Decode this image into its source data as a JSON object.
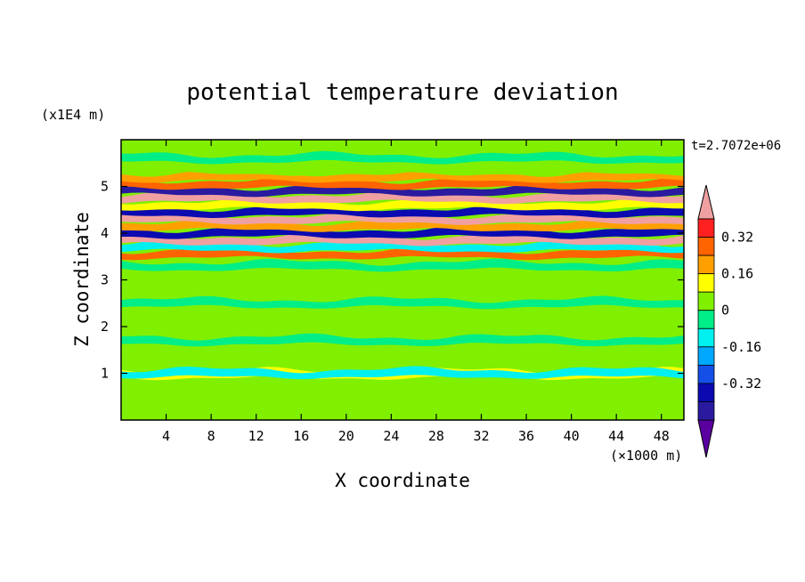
{
  "chart_data": {
    "type": "heatmap",
    "title": "potential temperature deviation",
    "xlabel": "X coordinate",
    "ylabel": "Z coordinate",
    "x_unit": "(×1000 m)",
    "y_unit": "(x1E4 m)",
    "time_label": "t=2.7072e+06",
    "xlim": [
      0,
      50
    ],
    "ylim": [
      0,
      6
    ],
    "x_ticks": [
      4,
      8,
      12,
      16,
      20,
      24,
      28,
      32,
      36,
      40,
      44,
      48
    ],
    "y_ticks": [
      1,
      2,
      3,
      4,
      5
    ],
    "colorbar": {
      "levels": [
        -0.48,
        -0.4,
        -0.32,
        -0.24,
        -0.16,
        -0.08,
        0,
        0.08,
        0.16,
        0.24,
        0.32,
        0.4
      ],
      "colors": [
        "#5a00a0",
        "#2a1aa0",
        "#0a0ab0",
        "#1450e8",
        "#00a8ff",
        "#00f0f0",
        "#00ee88",
        "#80f000",
        "#ffff00",
        "#ffa000",
        "#ff6400",
        "#ff2020",
        "#f0a0a0"
      ],
      "tick_labels": [
        "0.32",
        "0.16",
        "0",
        "-0.16",
        "-0.32"
      ],
      "tick_values": [
        0.32,
        0.16,
        0,
        -0.16,
        -0.32
      ],
      "extend": "both"
    },
    "bands": [
      {
        "z": 0.45,
        "value": 0.04
      },
      {
        "z": 0.75,
        "value": 0.02
      },
      {
        "z": 0.98,
        "value": 0.12
      },
      {
        "z": 1.0,
        "value": -0.12
      },
      {
        "z": 1.3,
        "value": 0.04
      },
      {
        "z": 1.7,
        "value": -0.02
      },
      {
        "z": 2.1,
        "value": 0.04
      },
      {
        "z": 2.5,
        "value": -0.02
      },
      {
        "z": 2.9,
        "value": 0.04
      },
      {
        "z": 3.3,
        "value": -0.02
      },
      {
        "z": 3.55,
        "value": 0.3
      },
      {
        "z": 3.7,
        "value": -0.12
      },
      {
        "z": 3.85,
        "value": 0.44
      },
      {
        "z": 4.0,
        "value": -0.36
      },
      {
        "z": 4.15,
        "value": 0.2
      },
      {
        "z": 4.3,
        "value": 0.44
      },
      {
        "z": 4.45,
        "value": -0.4
      },
      {
        "z": 4.6,
        "value": 0.1
      },
      {
        "z": 4.75,
        "value": 0.44
      },
      {
        "z": 4.9,
        "value": -0.44
      },
      {
        "z": 5.05,
        "value": 0.28
      },
      {
        "z": 5.2,
        "value": 0.16
      },
      {
        "z": 5.35,
        "value": 0.04
      },
      {
        "z": 5.6,
        "value": -0.02
      },
      {
        "z": 5.85,
        "value": 0.02
      }
    ]
  }
}
